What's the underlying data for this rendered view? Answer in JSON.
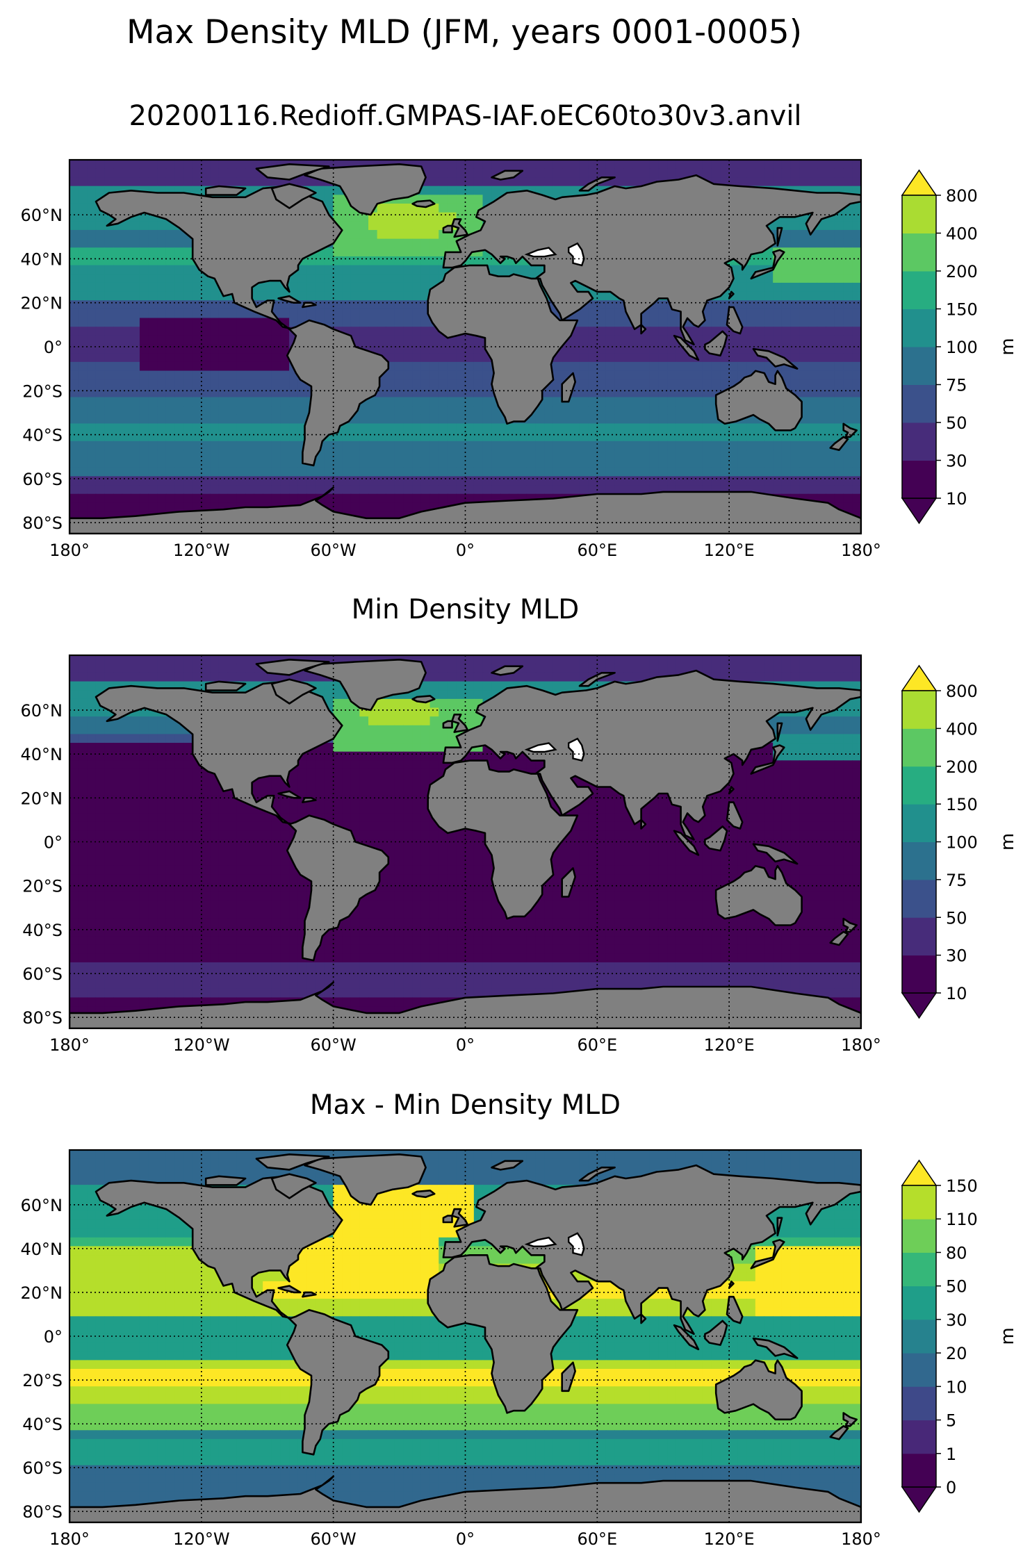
{
  "figure": {
    "title": "Max Density MLD (JFM, years 0001-0005)",
    "land_color": "#808080",
    "coast_color": "#000000",
    "grid_style": "dotted",
    "lon_ticks": [
      "180°",
      "120°W",
      "60°W",
      "0°",
      "60°E",
      "120°E",
      "180°"
    ],
    "lat_ticks": [
      "60°N",
      "40°N",
      "20°N",
      "0°",
      "20°S",
      "40°S",
      "60°S",
      "80°S"
    ],
    "projection": "PlateCarree",
    "lon_range": [
      -180,
      180
    ],
    "lat_range": [
      -85,
      85
    ]
  },
  "panels": [
    {
      "title": "20200116.Redioff.GMPAS-IAF.oEC60to30v3.anvil",
      "unit": "m",
      "levels": [
        "10",
        "30",
        "50",
        "75",
        "100",
        "150",
        "200",
        "400",
        "800"
      ],
      "colors": [
        "#440154",
        "#472c7a",
        "#3b518b",
        "#2c718e",
        "#21908d",
        "#27ad81",
        "#5cc863",
        "#aadc32",
        "#fde725"
      ],
      "under_color": "#440154",
      "over_color": "#fde725",
      "extend": "both"
    },
    {
      "title": "Min Density MLD",
      "unit": "m",
      "levels": [
        "10",
        "30",
        "50",
        "75",
        "100",
        "150",
        "200",
        "400",
        "800"
      ],
      "colors": [
        "#440154",
        "#472c7a",
        "#3b518b",
        "#2c718e",
        "#21908d",
        "#27ad81",
        "#5cc863",
        "#aadc32",
        "#fde725"
      ],
      "under_color": "#440154",
      "over_color": "#fde725",
      "extend": "both"
    },
    {
      "title": "Max - Min Density MLD",
      "unit": "m",
      "levels": [
        "0",
        "1",
        "5",
        "10",
        "20",
        "30",
        "50",
        "80",
        "110",
        "150"
      ],
      "colors": [
        "#440154",
        "#482878",
        "#3e4989",
        "#31688e",
        "#26828e",
        "#1f9e89",
        "#35b779",
        "#6ece58",
        "#b5de2b",
        "#fde725"
      ],
      "under_color": "#440154",
      "over_color": "#fde725",
      "extend": "both"
    }
  ]
}
